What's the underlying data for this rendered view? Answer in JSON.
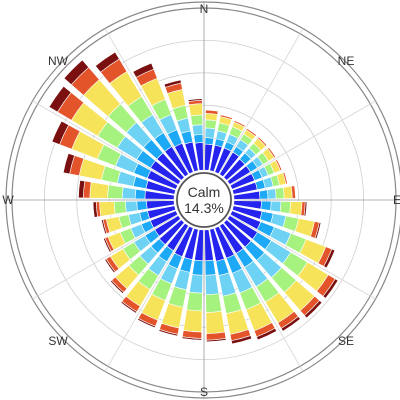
{
  "chart_data": {
    "type": "windrose",
    "calm": {
      "label": "Calm",
      "value": "14.3%"
    },
    "direction_labels": [
      "N",
      "NE",
      "E",
      "SE",
      "S",
      "SW",
      "W",
      "NW"
    ],
    "sector_count": 36,
    "sector_start_deg": 5,
    "sector_step_deg": 10,
    "radial_max": 1.0,
    "grid_rings": [
      0.2,
      0.4,
      0.6,
      0.8,
      1.0
    ],
    "bin_colors": [
      "#2424ee",
      "#1ea9f7",
      "#6ed2f5",
      "#a6f27e",
      "#f6e35a",
      "#e4542b",
      "#7a1010"
    ],
    "sectors": [
      [
        0.16,
        0.2,
        0.26,
        0.31,
        0.35,
        0.37,
        0.37
      ],
      [
        0.16,
        0.2,
        0.25,
        0.3,
        0.34,
        0.35,
        0.35
      ],
      [
        0.16,
        0.2,
        0.25,
        0.3,
        0.33,
        0.34,
        0.34
      ],
      [
        0.16,
        0.2,
        0.25,
        0.29,
        0.32,
        0.33,
        0.33
      ],
      [
        0.15,
        0.2,
        0.24,
        0.28,
        0.32,
        0.33,
        0.33
      ],
      [
        0.15,
        0.2,
        0.24,
        0.28,
        0.32,
        0.33,
        0.33
      ],
      [
        0.15,
        0.2,
        0.24,
        0.28,
        0.32,
        0.33,
        0.33
      ],
      [
        0.15,
        0.2,
        0.25,
        0.29,
        0.33,
        0.34,
        0.34
      ],
      [
        0.16,
        0.21,
        0.26,
        0.31,
        0.36,
        0.38,
        0.38
      ],
      [
        0.17,
        0.23,
        0.29,
        0.35,
        0.42,
        0.44,
        0.45
      ],
      [
        0.18,
        0.25,
        0.33,
        0.41,
        0.51,
        0.54,
        0.55
      ],
      [
        0.19,
        0.28,
        0.39,
        0.49,
        0.62,
        0.66,
        0.68
      ],
      [
        0.2,
        0.3,
        0.44,
        0.56,
        0.71,
        0.76,
        0.78
      ],
      [
        0.2,
        0.31,
        0.45,
        0.57,
        0.72,
        0.76,
        0.78
      ],
      [
        0.2,
        0.3,
        0.44,
        0.55,
        0.7,
        0.74,
        0.76
      ],
      [
        0.2,
        0.3,
        0.43,
        0.54,
        0.68,
        0.72,
        0.74
      ],
      [
        0.2,
        0.29,
        0.42,
        0.53,
        0.66,
        0.7,
        0.72
      ],
      [
        0.19,
        0.28,
        0.4,
        0.51,
        0.64,
        0.68,
        0.69
      ],
      [
        0.19,
        0.28,
        0.39,
        0.5,
        0.63,
        0.67,
        0.68
      ],
      [
        0.19,
        0.27,
        0.38,
        0.49,
        0.62,
        0.66,
        0.67
      ],
      [
        0.19,
        0.27,
        0.37,
        0.48,
        0.61,
        0.65,
        0.66
      ],
      [
        0.18,
        0.26,
        0.36,
        0.46,
        0.58,
        0.62,
        0.63
      ],
      [
        0.18,
        0.25,
        0.34,
        0.43,
        0.54,
        0.57,
        0.58
      ],
      [
        0.17,
        0.24,
        0.32,
        0.4,
        0.49,
        0.52,
        0.53
      ],
      [
        0.17,
        0.23,
        0.3,
        0.37,
        0.45,
        0.47,
        0.48
      ],
      [
        0.17,
        0.22,
        0.29,
        0.35,
        0.43,
        0.45,
        0.46
      ],
      [
        0.17,
        0.23,
        0.3,
        0.37,
        0.46,
        0.48,
        0.5
      ],
      [
        0.18,
        0.24,
        0.32,
        0.41,
        0.52,
        0.56,
        0.59
      ],
      [
        0.18,
        0.26,
        0.36,
        0.46,
        0.6,
        0.66,
        0.7
      ],
      [
        0.19,
        0.28,
        0.4,
        0.52,
        0.69,
        0.77,
        0.82
      ],
      [
        0.2,
        0.3,
        0.44,
        0.58,
        0.77,
        0.87,
        0.93
      ],
      [
        0.2,
        0.31,
        0.45,
        0.6,
        0.8,
        0.9,
        0.96
      ],
      [
        0.2,
        0.3,
        0.43,
        0.56,
        0.74,
        0.83,
        0.88
      ],
      [
        0.19,
        0.28,
        0.38,
        0.48,
        0.62,
        0.68,
        0.72
      ],
      [
        0.18,
        0.25,
        0.33,
        0.41,
        0.51,
        0.55,
        0.57
      ],
      [
        0.17,
        0.22,
        0.28,
        0.34,
        0.41,
        0.43,
        0.44
      ]
    ]
  }
}
